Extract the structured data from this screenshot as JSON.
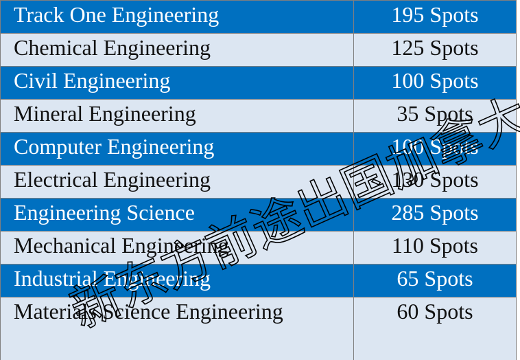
{
  "table": {
    "rows": [
      {
        "program": "Track One Engineering",
        "spots": "195 Spots",
        "style": "dark"
      },
      {
        "program": "Chemical Engineering",
        "spots": "125 Spots",
        "style": "light"
      },
      {
        "program": "Civil Engineering",
        "spots": "100 Spots",
        "style": "dark"
      },
      {
        "program": "Mineral Engineering",
        "spots": "35 Spots",
        "style": "light"
      },
      {
        "program": "Computer Engineering",
        "spots": "100 Spots",
        "style": "dark"
      },
      {
        "program": "Electrical Engineering",
        "spots": "130 Spots",
        "style": "light"
      },
      {
        "program": "Engineering Science",
        "spots": "285 Spots",
        "style": "dark"
      },
      {
        "program": "Mechanical Engineering",
        "spots": "110 Spots",
        "style": "light"
      },
      {
        "program": "Industrial Engineering",
        "spots": "65 Spots",
        "style": "dark"
      },
      {
        "program": "Materials Science Engineering",
        "spots": "60 Spots",
        "style": "tall"
      }
    ]
  },
  "watermark": {
    "text": "新东方前途出国加拿大"
  },
  "colors": {
    "header_blue": "#0070c0",
    "row_light": "#dce6f2",
    "border": "#7f7f7f"
  }
}
